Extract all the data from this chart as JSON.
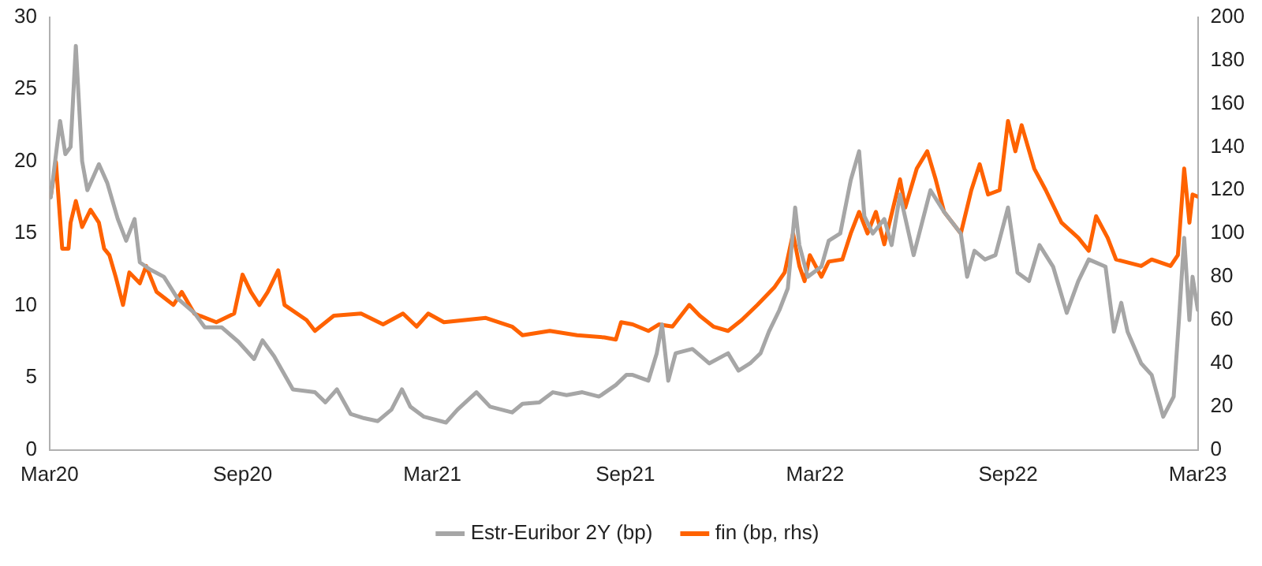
{
  "chart_data": {
    "type": "line",
    "legend": "bottom",
    "grid": false,
    "marker": "none",
    "line_style": "solid",
    "xlim": [
      "2020-03-01",
      "2023-03-01"
    ],
    "xticks": [
      {
        "value": "2020-03-01",
        "label": "Mar20"
      },
      {
        "value": "2020-09-01",
        "label": "Sep20"
      },
      {
        "value": "2021-03-01",
        "label": "Mar21"
      },
      {
        "value": "2021-09-01",
        "label": "Sep21"
      },
      {
        "value": "2022-03-01",
        "label": "Mar22"
      },
      {
        "value": "2022-09-01",
        "label": "Sep22"
      },
      {
        "value": "2023-03-01",
        "label": "Mar23"
      }
    ],
    "ylim": [
      0,
      30
    ],
    "yticks": [
      0,
      5,
      10,
      15,
      20,
      25,
      30
    ],
    "y2lim": [
      0,
      200
    ],
    "y2ticks": [
      0,
      20,
      40,
      60,
      80,
      100,
      120,
      140,
      160,
      180,
      200
    ],
    "series": [
      {
        "name": "Estr-Euribor 2Y (bp)",
        "color": "#a6a6a6",
        "axis": "y",
        "x": [
          "2020-03-02",
          "2020-03-11",
          "2020-03-16",
          "2020-03-21",
          "2020-03-26",
          "2020-04-01",
          "2020-04-06",
          "2020-04-17",
          "2020-04-25",
          "2020-05-05",
          "2020-05-13",
          "2020-05-21",
          "2020-05-26",
          "2020-06-05",
          "2020-06-18",
          "2020-07-01",
          "2020-07-17",
          "2020-07-27",
          "2020-08-12",
          "2020-08-28",
          "2020-09-12",
          "2020-09-20",
          "2020-10-01",
          "2020-10-19",
          "2020-11-09",
          "2020-11-19",
          "2020-11-30",
          "2020-12-13",
          "2020-12-26",
          "2021-01-08",
          "2021-01-21",
          "2021-01-31",
          "2021-02-08",
          "2021-02-21",
          "2021-03-14",
          "2021-03-25",
          "2021-04-12",
          "2021-04-25",
          "2021-05-16",
          "2021-05-26",
          "2021-06-11",
          "2021-06-24",
          "2021-07-07",
          "2021-07-22",
          "2021-08-07",
          "2021-08-23",
          "2021-09-02",
          "2021-09-08",
          "2021-09-23",
          "2021-10-01",
          "2021-10-06",
          "2021-10-12",
          "2021-10-19",
          "2021-11-04",
          "2021-11-20",
          "2021-12-08",
          "2021-12-18",
          "2021-12-29",
          "2022-01-08",
          "2022-01-16",
          "2022-01-26",
          "2022-02-03",
          "2022-02-10",
          "2022-02-14",
          "2022-02-22",
          "2022-03-07",
          "2022-03-14",
          "2022-03-25",
          "2022-04-04",
          "2022-04-12",
          "2022-04-17",
          "2022-04-25",
          "2022-05-06",
          "2022-05-13",
          "2022-05-21",
          "2022-06-03",
          "2022-06-19",
          "2022-07-02",
          "2022-07-18",
          "2022-07-24",
          "2022-07-31",
          "2022-08-10",
          "2022-08-20",
          "2022-09-01",
          "2022-09-10",
          "2022-09-21",
          "2022-10-01",
          "2022-10-14",
          "2022-10-27",
          "2022-11-07",
          "2022-11-17",
          "2022-12-03",
          "2022-12-11",
          "2022-12-18",
          "2022-12-24",
          "2023-01-06",
          "2023-01-16",
          "2023-01-27",
          "2023-02-06",
          "2023-02-11",
          "2023-02-16",
          "2023-02-21",
          "2023-02-24",
          "2023-03-01"
        ],
        "values": [
          17.5,
          22.8,
          20.5,
          21,
          28,
          20,
          18,
          19.8,
          18.5,
          16,
          14.5,
          16,
          13,
          12.5,
          12,
          10.5,
          9.5,
          8.5,
          8.5,
          7.5,
          6.3,
          7.6,
          6.5,
          4.2,
          4,
          3.3,
          4.2,
          2.5,
          2.2,
          2,
          2.8,
          4.2,
          3,
          2.3,
          1.9,
          2.8,
          4,
          3,
          2.6,
          3.2,
          3.3,
          4,
          3.8,
          4,
          3.7,
          4.5,
          5.2,
          5.2,
          4.8,
          6.7,
          8.7,
          4.8,
          6.7,
          7,
          6,
          6.7,
          5.5,
          6,
          6.7,
          8.2,
          9.7,
          11.2,
          16.8,
          14.2,
          12,
          12.7,
          14.5,
          15,
          18.7,
          20.7,
          16.2,
          15,
          16,
          14.2,
          17.7,
          13.5,
          18,
          16.5,
          15,
          12,
          13.8,
          13.2,
          13.5,
          16.8,
          12.3,
          11.7,
          14.2,
          12.7,
          9.5,
          11.7,
          13.2,
          12.7,
          8.2,
          10.2,
          8.2,
          6,
          5.2,
          2.3,
          3.7,
          9,
          14.7,
          9,
          12,
          9.7
        ]
      },
      {
        "name": "fin (bp, rhs)",
        "color": "#ff6200",
        "axis": "y2",
        "x": [
          "2020-03-02",
          "2020-03-07",
          "2020-03-13",
          "2020-03-19",
          "2020-03-21",
          "2020-03-26",
          "2020-04-01",
          "2020-04-09",
          "2020-04-17",
          "2020-04-22",
          "2020-04-27",
          "2020-05-03",
          "2020-05-10",
          "2020-05-16",
          "2020-05-26",
          "2020-06-01",
          "2020-06-11",
          "2020-06-27",
          "2020-07-05",
          "2020-07-17",
          "2020-08-07",
          "2020-08-24",
          "2020-09-01",
          "2020-09-09",
          "2020-09-17",
          "2020-09-25",
          "2020-10-05",
          "2020-10-11",
          "2020-11-01",
          "2020-11-09",
          "2020-11-27",
          "2020-12-23",
          "2021-01-13",
          "2021-02-01",
          "2021-02-14",
          "2021-02-25",
          "2021-03-12",
          "2021-04-21",
          "2021-05-16",
          "2021-05-26",
          "2021-06-21",
          "2021-07-17",
          "2021-08-12",
          "2021-08-23",
          "2021-08-28",
          "2021-09-08",
          "2021-09-23",
          "2021-10-03",
          "2021-10-16",
          "2021-11-01",
          "2021-11-11",
          "2021-11-24",
          "2021-12-08",
          "2021-12-21",
          "2022-01-05",
          "2022-01-21",
          "2022-01-31",
          "2022-02-08",
          "2022-02-14",
          "2022-02-19",
          "2022-02-24",
          "2022-03-07",
          "2022-03-14",
          "2022-03-27",
          "2022-04-04",
          "2022-04-12",
          "2022-04-20",
          "2022-04-28",
          "2022-05-06",
          "2022-05-21",
          "2022-05-26",
          "2022-06-06",
          "2022-06-16",
          "2022-06-24",
          "2022-07-02",
          "2022-07-18",
          "2022-07-28",
          "2022-08-05",
          "2022-08-13",
          "2022-08-24",
          "2022-09-01",
          "2022-09-08",
          "2022-09-14",
          "2022-09-26",
          "2022-10-07",
          "2022-10-22",
          "2022-11-07",
          "2022-11-17",
          "2022-11-24",
          "2022-12-05",
          "2022-12-13",
          "2023-01-06",
          "2023-01-16",
          "2023-02-03",
          "2023-02-10",
          "2023-02-16",
          "2023-02-21",
          "2023-02-24",
          "2023-03-01"
        ],
        "values": [
          117,
          133,
          93,
          93,
          105,
          115,
          103,
          111,
          105,
          93,
          90,
          80,
          67,
          82,
          77,
          85,
          73,
          67,
          73,
          63,
          59,
          63,
          81,
          73,
          67,
          73,
          83,
          67,
          60,
          55,
          62,
          63,
          58,
          63,
          57,
          63,
          59,
          61,
          57,
          53,
          55,
          53,
          52,
          51,
          59,
          58,
          55,
          58,
          57,
          67,
          62,
          57,
          55,
          60,
          67,
          75,
          82,
          100,
          85,
          78,
          90,
          80,
          87,
          88,
          100,
          110,
          100,
          110,
          95,
          125,
          112,
          130,
          138,
          125,
          110,
          100,
          120,
          132,
          118,
          120,
          152,
          138,
          150,
          130,
          120,
          105,
          98,
          92,
          108,
          98,
          88,
          85,
          88,
          85,
          90,
          130,
          105,
          118,
          117
        ]
      }
    ]
  }
}
